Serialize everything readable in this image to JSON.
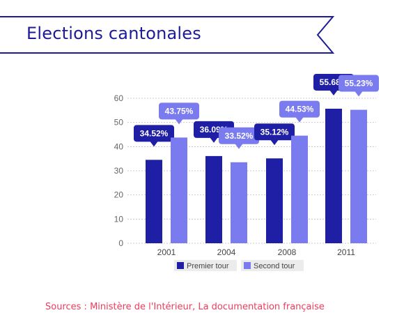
{
  "header": {
    "title": "Elections cantonales"
  },
  "footer": {
    "sources": "Sources : Ministère de l'Intérieur, La documentation française"
  },
  "colors": {
    "accent": "#1c1c99",
    "series_1": "#1f1fa6",
    "series_2": "#7b7bf0",
    "source_text": "#ef3b5c"
  },
  "chart_data": {
    "type": "bar",
    "categories": [
      "2001",
      "2004",
      "2008",
      "2011"
    ],
    "series": [
      {
        "name": "Premier tour",
        "values": [
          34.52,
          36.09,
          35.12,
          55.68
        ],
        "labels": [
          "34.52%",
          "36.09%",
          "35.12%",
          "55.68%"
        ]
      },
      {
        "name": "Second tour",
        "values": [
          43.75,
          33.52,
          44.53,
          55.23
        ],
        "labels": [
          "43.75%",
          "33.52%",
          "44.53%",
          "55.23%"
        ]
      }
    ],
    "yticks": [
      "0",
      "10",
      "20",
      "30",
      "40",
      "50",
      "60"
    ],
    "ylim": [
      0,
      60
    ],
    "grid": true,
    "legend": "bottom-center"
  }
}
